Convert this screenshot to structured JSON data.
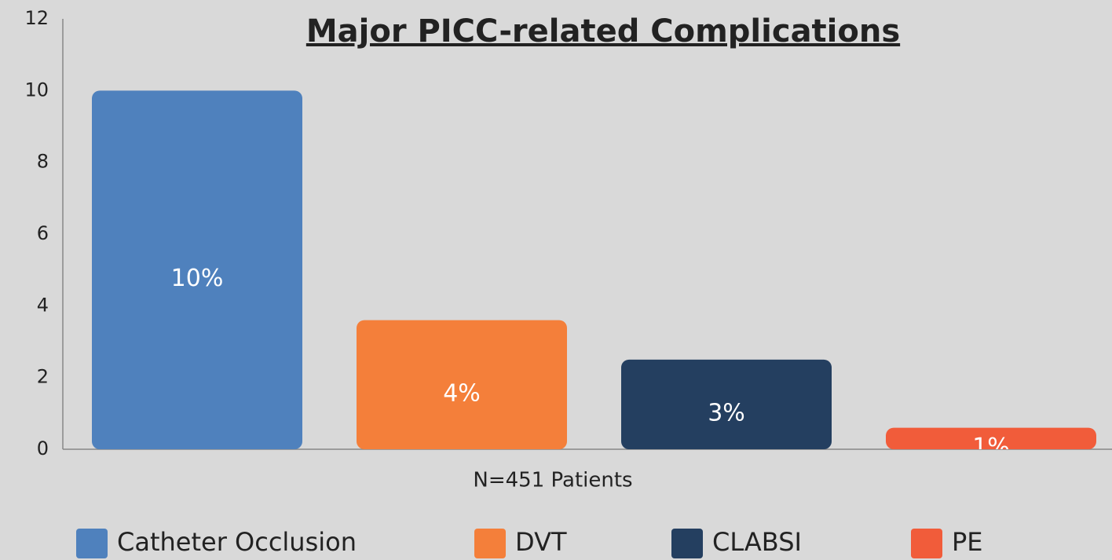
{
  "chart_data": {
    "type": "bar",
    "title": "Major PICC-related Complications",
    "categories": [
      "N=451 Patients"
    ],
    "series": [
      {
        "name": "Catheter Occlusion",
        "color": "#4f81bd",
        "values": [
          10
        ],
        "value_labels": [
          "10%"
        ]
      },
      {
        "name": "DVT",
        "color": "#f47f3a",
        "values": [
          3.6
        ],
        "value_labels": [
          "4%"
        ]
      },
      {
        "name": "CLABSI",
        "color": "#243f60",
        "values": [
          2.5
        ],
        "value_labels": [
          "3%"
        ]
      },
      {
        "name": "PE",
        "color": "#f15c3a",
        "values": [
          0.6
        ],
        "value_labels": [
          "1%"
        ]
      }
    ],
    "ylim": [
      0,
      12
    ],
    "yticks": [
      0,
      2,
      4,
      6,
      8,
      10,
      12
    ],
    "grid": false,
    "legend": "bottom"
  }
}
